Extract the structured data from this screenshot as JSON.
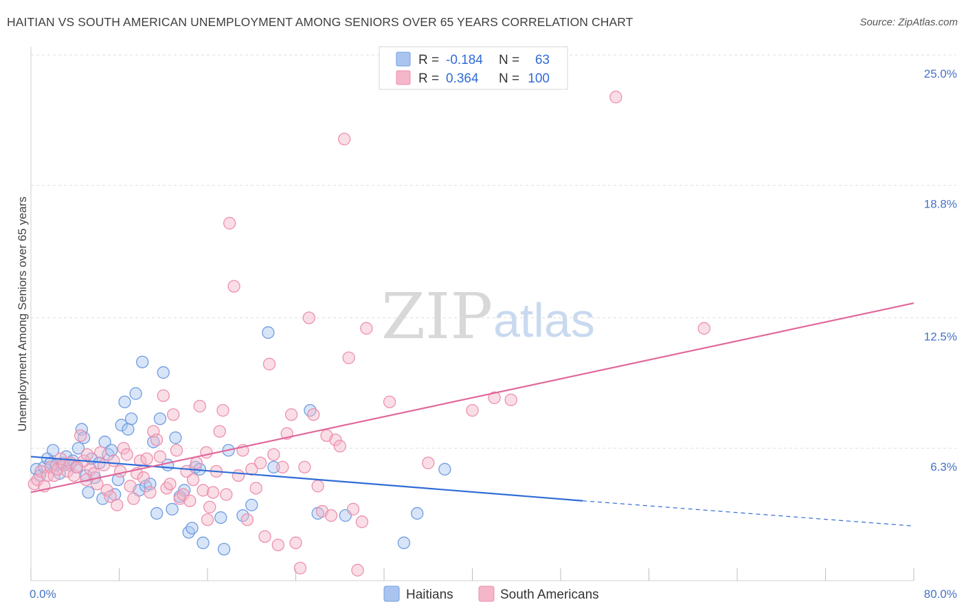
{
  "title": "HAITIAN VS SOUTH AMERICAN UNEMPLOYMENT AMONG SENIORS OVER 65 YEARS CORRELATION CHART",
  "source": "Source: ZipAtlas.com",
  "watermark": {
    "zip": "ZIP",
    "atlas": "atlas"
  },
  "legend": {
    "rows": [
      {
        "r_label": "R =",
        "r_value": "-0.184",
        "n_label": "N =",
        "n_value": "63",
        "color": "#a9c5ef"
      },
      {
        "r_label": "R =",
        "r_value": "0.364",
        "n_label": "N =",
        "n_value": "100",
        "color": "#f4b6c8"
      }
    ]
  },
  "bottom_legend": [
    "Haitians",
    "South Americans"
  ],
  "chart_data": {
    "type": "scatter",
    "xlabel": "",
    "ylabel": "Unemployment Among Seniors over 65 years",
    "xlim": [
      0,
      80
    ],
    "ylim": [
      0,
      25
    ],
    "x_tick_labels": [
      "0.0%",
      "80.0%"
    ],
    "y_ticks": [
      6.3,
      12.5,
      18.8,
      25.0
    ],
    "y_tick_labels": [
      "6.3%",
      "12.5%",
      "18.8%",
      "25.0%"
    ],
    "grid": "horizontal-dashed",
    "legend_placement": "top-center",
    "series": [
      {
        "name": "Haitians",
        "color": "#6f9be0",
        "fill": "#a9c5ef",
        "trend": {
          "x": [
            0,
            50
          ],
          "y": [
            5.9,
            3.8
          ],
          "dashed_to": [
            80,
            2.6
          ],
          "color": "#2f6bd6"
        },
        "points": [
          [
            0.5,
            5.3
          ],
          [
            0.8,
            5.0
          ],
          [
            1.2,
            5.4
          ],
          [
            1.5,
            5.8
          ],
          [
            1.8,
            5.6
          ],
          [
            2.0,
            6.2
          ],
          [
            2.3,
            5.5
          ],
          [
            2.6,
            5.1
          ],
          [
            2.9,
            5.6
          ],
          [
            3.2,
            5.9
          ],
          [
            3.5,
            5.5
          ],
          [
            3.8,
            5.7
          ],
          [
            4.1,
            5.4
          ],
          [
            4.3,
            6.3
          ],
          [
            4.6,
            7.2
          ],
          [
            4.8,
            6.8
          ],
          [
            5.0,
            5.0
          ],
          [
            5.2,
            4.2
          ],
          [
            5.5,
            5.8
          ],
          [
            5.8,
            4.9
          ],
          [
            6.2,
            5.6
          ],
          [
            6.5,
            3.9
          ],
          [
            6.7,
            6.6
          ],
          [
            7.0,
            6.0
          ],
          [
            7.3,
            6.2
          ],
          [
            7.6,
            4.1
          ],
          [
            7.9,
            4.8
          ],
          [
            8.2,
            7.4
          ],
          [
            8.5,
            8.5
          ],
          [
            8.8,
            7.2
          ],
          [
            9.1,
            7.7
          ],
          [
            9.5,
            8.9
          ],
          [
            9.8,
            4.3
          ],
          [
            10.1,
            10.4
          ],
          [
            10.4,
            4.5
          ],
          [
            10.8,
            4.6
          ],
          [
            11.1,
            6.6
          ],
          [
            11.4,
            3.2
          ],
          [
            11.7,
            7.7
          ],
          [
            12.0,
            9.9
          ],
          [
            12.4,
            5.5
          ],
          [
            12.8,
            3.4
          ],
          [
            13.1,
            6.8
          ],
          [
            13.5,
            4.0
          ],
          [
            13.9,
            4.3
          ],
          [
            14.3,
            2.3
          ],
          [
            14.6,
            2.5
          ],
          [
            14.9,
            5.4
          ],
          [
            15.3,
            5.3
          ],
          [
            15.6,
            1.8
          ],
          [
            17.2,
            3.0
          ],
          [
            17.5,
            1.5
          ],
          [
            17.9,
            6.2
          ],
          [
            19.2,
            3.1
          ],
          [
            20.0,
            3.6
          ],
          [
            21.5,
            11.8
          ],
          [
            22.0,
            5.4
          ],
          [
            25.3,
            8.1
          ],
          [
            26.0,
            3.2
          ],
          [
            28.5,
            3.1
          ],
          [
            33.8,
            1.8
          ],
          [
            35.0,
            3.2
          ],
          [
            37.5,
            5.3
          ]
        ]
      },
      {
        "name": "South Americans",
        "color": "#ec8fae",
        "fill": "#f4b6c8",
        "trend": {
          "x": [
            0,
            80
          ],
          "y": [
            4.2,
            13.2
          ],
          "color": "#e0679a"
        },
        "points": [
          [
            0.3,
            4.6
          ],
          [
            0.6,
            4.8
          ],
          [
            0.9,
            5.2
          ],
          [
            1.2,
            4.5
          ],
          [
            1.5,
            5.0
          ],
          [
            1.8,
            5.4
          ],
          [
            2.1,
            5.0
          ],
          [
            2.4,
            5.3
          ],
          [
            2.7,
            5.8
          ],
          [
            3.0,
            5.5
          ],
          [
            3.3,
            5.2
          ],
          [
            3.6,
            5.6
          ],
          [
            3.9,
            5.0
          ],
          [
            4.2,
            5.4
          ],
          [
            4.5,
            6.9
          ],
          [
            4.8,
            5.7
          ],
          [
            5.1,
            6.0
          ],
          [
            5.4,
            5.3
          ],
          [
            5.7,
            5.1
          ],
          [
            6.0,
            4.6
          ],
          [
            6.3,
            6.1
          ],
          [
            6.6,
            5.5
          ],
          [
            6.9,
            4.3
          ],
          [
            7.2,
            4.0
          ],
          [
            7.5,
            5.7
          ],
          [
            7.8,
            3.6
          ],
          [
            8.1,
            5.2
          ],
          [
            8.4,
            6.3
          ],
          [
            8.7,
            6.0
          ],
          [
            9.0,
            4.5
          ],
          [
            9.3,
            3.9
          ],
          [
            9.6,
            5.1
          ],
          [
            9.9,
            5.7
          ],
          [
            10.2,
            4.9
          ],
          [
            10.5,
            5.8
          ],
          [
            10.8,
            4.2
          ],
          [
            11.1,
            7.1
          ],
          [
            11.4,
            6.7
          ],
          [
            11.7,
            5.9
          ],
          [
            12.0,
            8.8
          ],
          [
            12.3,
            4.4
          ],
          [
            12.6,
            4.6
          ],
          [
            12.9,
            7.9
          ],
          [
            13.2,
            6.2
          ],
          [
            13.5,
            3.9
          ],
          [
            13.8,
            4.1
          ],
          [
            14.1,
            5.2
          ],
          [
            14.4,
            3.8
          ],
          [
            14.7,
            4.8
          ],
          [
            15.0,
            5.6
          ],
          [
            15.3,
            8.3
          ],
          [
            15.6,
            4.3
          ],
          [
            15.9,
            6.1
          ],
          [
            16.2,
            3.5
          ],
          [
            16.5,
            4.2
          ],
          [
            16.8,
            5.2
          ],
          [
            17.1,
            7.1
          ],
          [
            17.4,
            8.1
          ],
          [
            17.7,
            4.1
          ],
          [
            18.0,
            17.0
          ],
          [
            18.4,
            14.0
          ],
          [
            18.8,
            5.0
          ],
          [
            19.2,
            6.2
          ],
          [
            19.6,
            2.9
          ],
          [
            20.0,
            5.3
          ],
          [
            20.4,
            4.4
          ],
          [
            20.8,
            5.6
          ],
          [
            21.2,
            2.1
          ],
          [
            21.6,
            10.3
          ],
          [
            22.0,
            6.0
          ],
          [
            22.4,
            1.7
          ],
          [
            22.8,
            5.4
          ],
          [
            23.2,
            7.0
          ],
          [
            23.6,
            7.9
          ],
          [
            24.0,
            1.8
          ],
          [
            24.4,
            0.6
          ],
          [
            24.8,
            5.4
          ],
          [
            25.2,
            12.5
          ],
          [
            25.6,
            7.9
          ],
          [
            26.0,
            4.5
          ],
          [
            26.4,
            3.3
          ],
          [
            26.8,
            6.9
          ],
          [
            27.2,
            3.1
          ],
          [
            27.6,
            6.7
          ],
          [
            28.0,
            6.4
          ],
          [
            28.4,
            21.0
          ],
          [
            28.8,
            10.6
          ],
          [
            29.2,
            3.4
          ],
          [
            29.6,
            0.5
          ],
          [
            30.0,
            2.8
          ],
          [
            30.4,
            12.0
          ],
          [
            32.5,
            8.5
          ],
          [
            36.0,
            5.6
          ],
          [
            40.0,
            8.1
          ],
          [
            42.0,
            8.7
          ],
          [
            43.5,
            8.6
          ],
          [
            53.0,
            23.0
          ],
          [
            61.0,
            12.0
          ],
          [
            5.0,
            4.8
          ],
          [
            16.0,
            2.9
          ]
        ]
      }
    ]
  }
}
